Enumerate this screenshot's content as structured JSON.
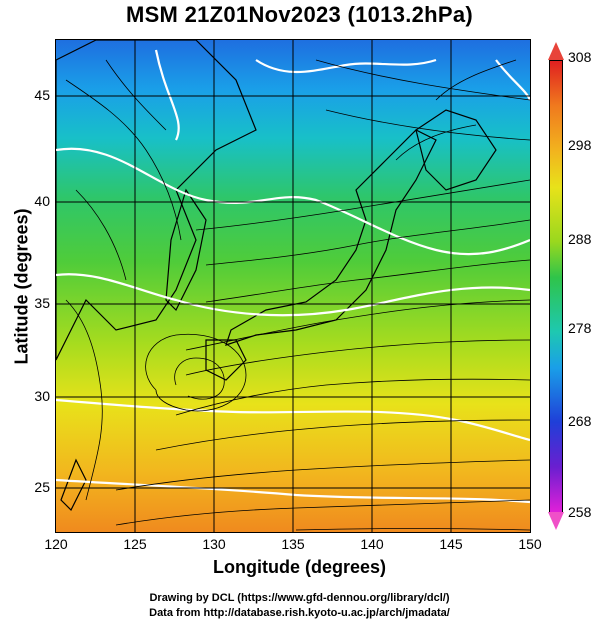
{
  "title": "MSM 21Z01Nov2023 (1013.2hPa)",
  "xlabel": "Longitude (degrees)",
  "ylabel": "Latitude  (degrees)",
  "xticks": [
    "120",
    "125",
    "130",
    "135",
    "140",
    "145",
    "150"
  ],
  "yticks": [
    "45",
    "40",
    "35",
    "30",
    "25"
  ],
  "colorbar": {
    "max_label": "308",
    "labels": [
      "298",
      "288",
      "278",
      "268"
    ],
    "min_label": "258"
  },
  "credits": {
    "line1": "Drawing by DCL (https://www.gfd-dennou.org/library/dcl/)",
    "line2": "Data from http://database.rish.kyoto-u.ac.jp/arch/jmadata/"
  },
  "colors": {
    "land_outline": "#000000",
    "contour": "#ffffff",
    "grid": "#000000"
  }
}
